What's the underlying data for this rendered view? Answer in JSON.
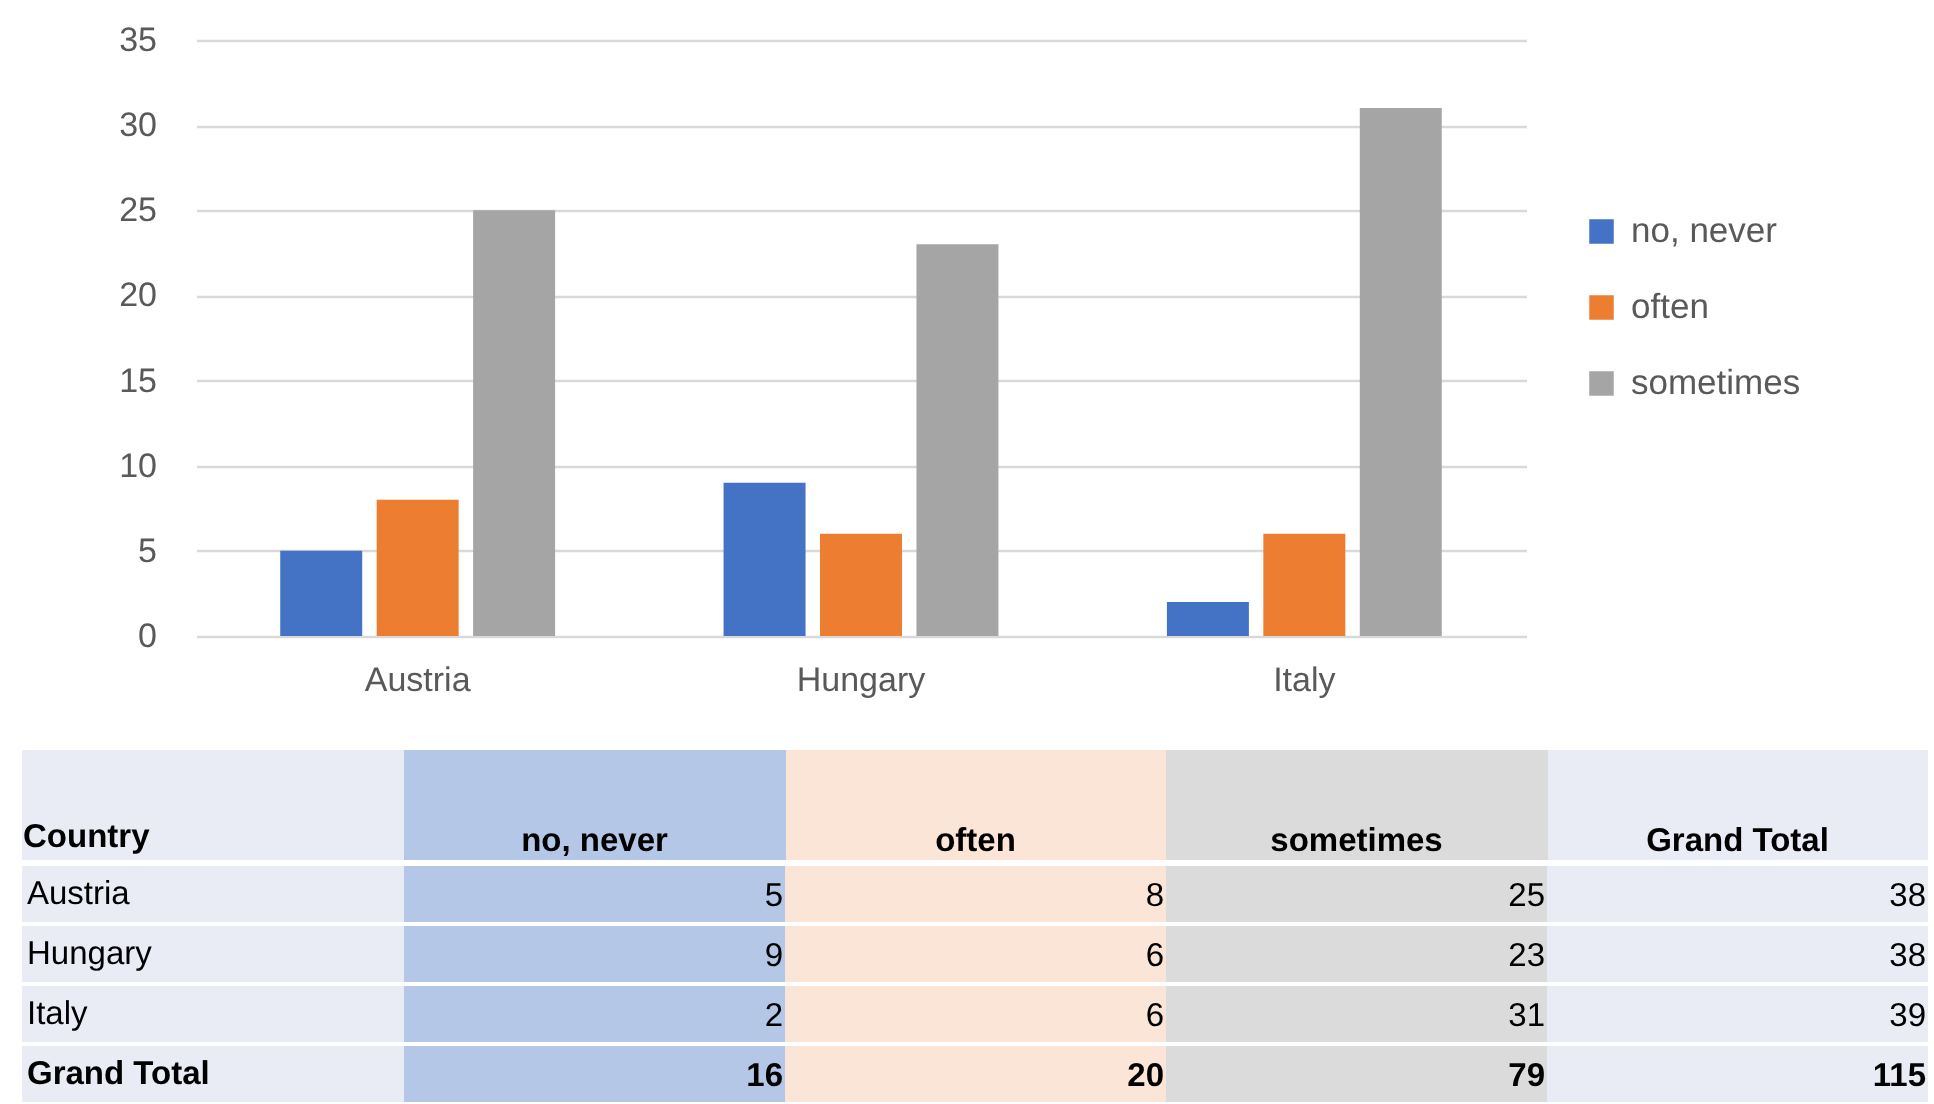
{
  "chart_data": [
    {
      "type": "bar",
      "categories": [
        "Austria",
        "Hungary",
        "Italy"
      ],
      "series": [
        {
          "name": "no, never",
          "color": "#4472c4",
          "values": [
            5,
            9,
            2
          ]
        },
        {
          "name": "often",
          "color": "#ed7d31",
          "values": [
            8,
            6,
            6
          ]
        },
        {
          "name": "sometimes",
          "color": "#a5a5a5",
          "values": [
            25,
            23,
            31
          ]
        }
      ],
      "ylim": [
        0,
        35
      ],
      "yticks": [
        0,
        5,
        10,
        15,
        20,
        25,
        30,
        35
      ],
      "grid": "y",
      "legend": "right"
    },
    {
      "type": "heatmap",
      "ylabel": "Country",
      "categories": [
        "no, never",
        "often",
        "sometimes",
        "Grand Total"
      ],
      "y_categories": [
        "Austria",
        "Hungary",
        "Italy",
        "Grand Total"
      ],
      "cells": [
        [
          5,
          8,
          25,
          38
        ],
        [
          9,
          6,
          23,
          38
        ],
        [
          2,
          6,
          31,
          39
        ],
        [
          16,
          20,
          79,
          115
        ]
      ],
      "data_labels": true
    }
  ]
}
